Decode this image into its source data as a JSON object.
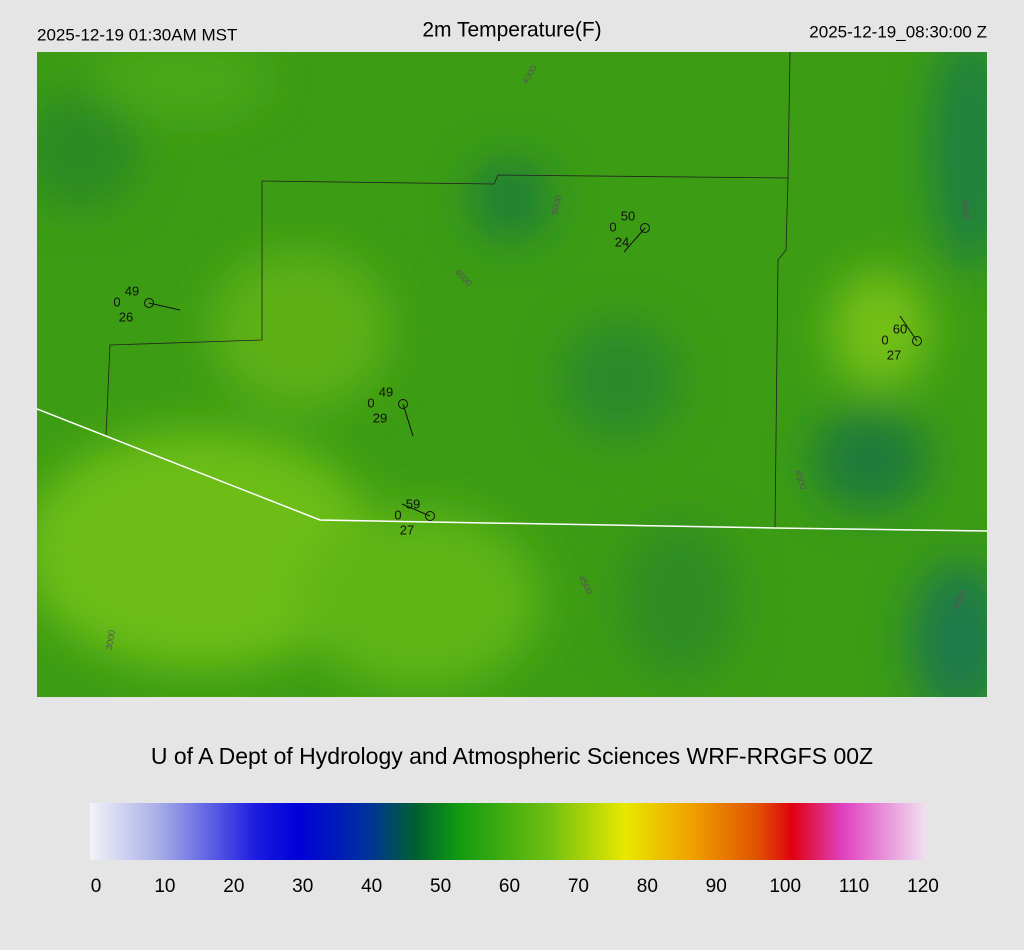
{
  "header": {
    "left": "2025-12-19 01:30AM MST",
    "title": "2m Temperature(F)",
    "right": "2025-12-19_08:30:00 Z"
  },
  "stations": [
    {
      "temp": 49,
      "vis": 0,
      "dew": 26
    },
    {
      "temp": 50,
      "vis": 0,
      "dew": 24
    },
    {
      "temp": 60,
      "vis": 0,
      "dew": 27
    },
    {
      "temp": 49,
      "vis": 0,
      "dew": 29
    },
    {
      "temp": 59,
      "vis": 0,
      "dew": 27
    }
  ],
  "contour_labels": [
    "4000",
    "4500",
    "5000",
    "4500",
    "3000",
    "4500",
    "4000",
    "4500"
  ],
  "footer": "U of A Dept of Hydrology and Atmospheric Sciences WRF-RRGFS 00Z",
  "colorbar": {
    "ticks": [
      0,
      10,
      20,
      30,
      40,
      50,
      60,
      70,
      80,
      90,
      100,
      110,
      120
    ]
  }
}
